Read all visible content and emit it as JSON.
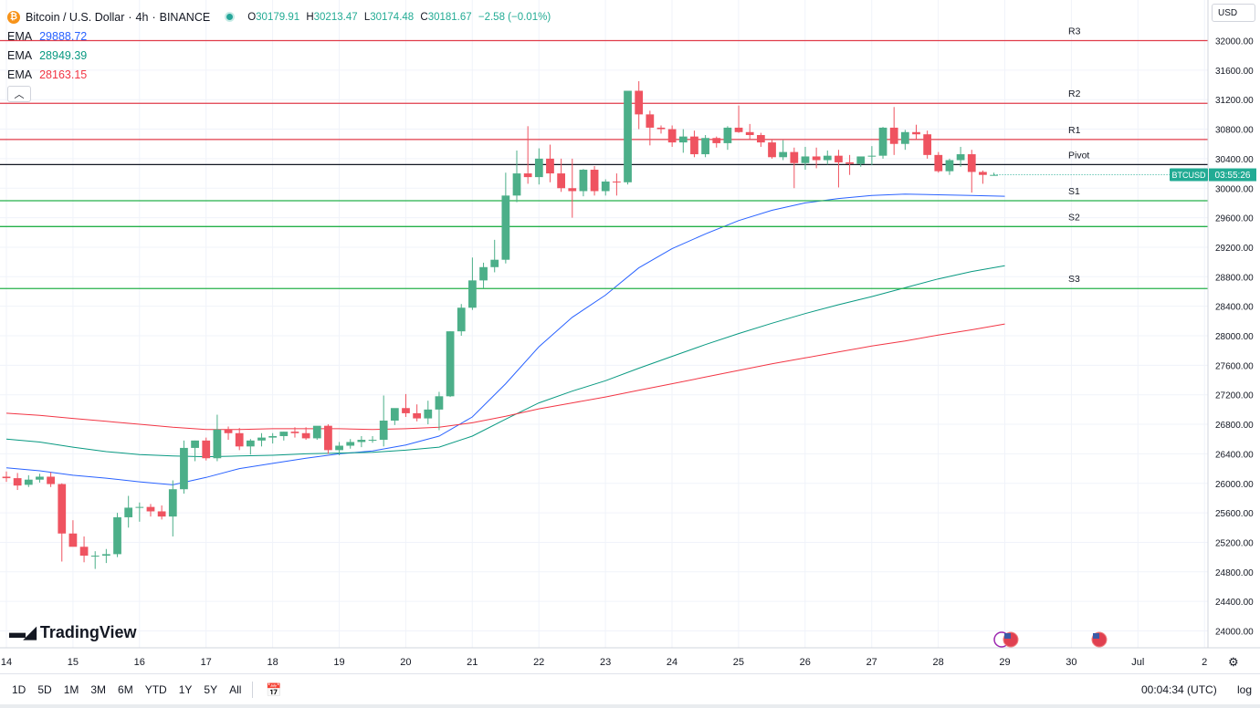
{
  "header": {
    "symbol_title": "Bitcoin / U.S. Dollar",
    "interval": "4h",
    "exchange": "BINANCE",
    "title_separator": "·",
    "ohlc": {
      "o_label": "O",
      "o": "30179.91",
      "h_label": "H",
      "h": "30213.47",
      "l_label": "L",
      "l": "30174.48",
      "c_label": "C",
      "c": "30181.67",
      "change": "−2.58 (−0.01%)"
    }
  },
  "indicators": [
    {
      "label": "EMA",
      "value": "29888.72",
      "color": "#2962ff"
    },
    {
      "label": "EMA",
      "value": "28949.39",
      "color": "#089981"
    },
    {
      "label": "EMA",
      "value": "28163.15",
      "color": "#f23645"
    }
  ],
  "currency": "USD",
  "price_tag": {
    "symbol": "BTCUSD",
    "countdown": "03:55:26",
    "price": 30181.67,
    "color": "#22ab94"
  },
  "brand": "TradingView",
  "bottom_bar": {
    "timeframes": [
      "1D",
      "5D",
      "1M",
      "3M",
      "6M",
      "YTD",
      "1Y",
      "5Y",
      "All"
    ],
    "clock": "00:04:34 (UTC)",
    "log_label": "log"
  },
  "colors": {
    "up": "#4caf89",
    "down": "#ef5360",
    "resistance": "#e03c4a",
    "support": "#25b04a",
    "pivot": "#131722",
    "grid": "#f0f3fa"
  },
  "chart_data": {
    "type": "candlestick",
    "ylim": [
      23750,
      32400
    ],
    "y_ticks": [
      24000,
      24400,
      24800,
      25200,
      25600,
      26000,
      26400,
      26800,
      27200,
      27600,
      28000,
      28400,
      28800,
      29200,
      29600,
      30000,
      30400,
      30800,
      31200,
      31600,
      32000
    ],
    "x_ticks": [
      "14",
      "15",
      "16",
      "17",
      "18",
      "19",
      "20",
      "21",
      "22",
      "23",
      "24",
      "25",
      "26",
      "27",
      "28",
      "29",
      "30",
      "Jul",
      "2"
    ],
    "levels": [
      {
        "name": "R3",
        "value": 32000
      },
      {
        "name": "R2",
        "value": 31150
      },
      {
        "name": "R1",
        "value": 30660
      },
      {
        "name": "Pivot",
        "value": 30320
      },
      {
        "name": "S1",
        "value": 29830
      },
      {
        "name": "S2",
        "value": 29480
      },
      {
        "name": "S3",
        "value": 28640
      }
    ],
    "candles_start_day": 14.0,
    "candle_interval_days": 0.1667,
    "candles": [
      [
        26090,
        26160,
        26020,
        26070
      ],
      [
        26070,
        26140,
        25910,
        25970
      ],
      [
        25980,
        26110,
        25950,
        26050
      ],
      [
        26050,
        26130,
        26010,
        26090
      ],
      [
        26090,
        26150,
        25950,
        25990
      ],
      [
        25990,
        26000,
        24940,
        25320
      ],
      [
        25320,
        25500,
        25160,
        25140
      ],
      [
        25140,
        25280,
        24930,
        25020
      ],
      [
        25020,
        25080,
        24840,
        25020
      ],
      [
        25020,
        25110,
        24920,
        25040
      ],
      [
        25040,
        25600,
        25000,
        25540
      ],
      [
        25540,
        25830,
        25400,
        25670
      ],
      [
        25670,
        25740,
        25480,
        25680
      ],
      [
        25680,
        25720,
        25550,
        25620
      ],
      [
        25620,
        25700,
        25510,
        25550
      ],
      [
        25550,
        26040,
        25280,
        25920
      ],
      [
        25920,
        26580,
        25860,
        26480
      ],
      [
        26480,
        26580,
        26300,
        26580
      ],
      [
        26580,
        26620,
        26310,
        26340
      ],
      [
        26340,
        26930,
        26300,
        26730
      ],
      [
        26730,
        26770,
        26590,
        26680
      ],
      [
        26680,
        26750,
        26450,
        26500
      ],
      [
        26500,
        26600,
        26390,
        26580
      ],
      [
        26580,
        26680,
        26500,
        26620
      ],
      [
        26620,
        26680,
        26540,
        26640
      ],
      [
        26640,
        26700,
        26580,
        26700
      ],
      [
        26700,
        26760,
        26620,
        26680
      ],
      [
        26680,
        26760,
        26590,
        26610
      ],
      [
        26610,
        26740,
        26590,
        26780
      ],
      [
        26780,
        26800,
        26400,
        26450
      ],
      [
        26450,
        26560,
        26380,
        26510
      ],
      [
        26510,
        26600,
        26470,
        26560
      ],
      [
        26560,
        26640,
        26490,
        26590
      ],
      [
        26590,
        26640,
        26550,
        26590
      ],
      [
        26590,
        27190,
        26500,
        26850
      ],
      [
        26850,
        26950,
        26790,
        27020
      ],
      [
        27020,
        27210,
        26900,
        26950
      ],
      [
        26950,
        27070,
        26840,
        26880
      ],
      [
        26880,
        27120,
        26800,
        27000
      ],
      [
        27000,
        27240,
        26720,
        27180
      ],
      [
        27180,
        28060,
        27170,
        28060
      ],
      [
        28060,
        28430,
        28000,
        28380
      ],
      [
        28380,
        29060,
        28350,
        28750
      ],
      [
        28750,
        28990,
        28640,
        28930
      ],
      [
        28930,
        29300,
        28860,
        29030
      ],
      [
        29030,
        30210,
        28980,
        29900
      ],
      [
        29900,
        30510,
        29810,
        30200
      ],
      [
        30200,
        30840,
        30060,
        30150
      ],
      [
        30150,
        30540,
        30050,
        30400
      ],
      [
        30400,
        30590,
        30080,
        30200
      ],
      [
        30200,
        30400,
        29950,
        30000
      ],
      [
        30000,
        30400,
        29600,
        29960
      ],
      [
        29960,
        30260,
        29890,
        30250
      ],
      [
        30250,
        30300,
        29900,
        29960
      ],
      [
        29960,
        30120,
        29900,
        30090
      ],
      [
        30090,
        30200,
        29900,
        30080
      ],
      [
        30080,
        31320,
        30050,
        31320
      ],
      [
        31320,
        31450,
        30800,
        31000
      ],
      [
        31000,
        31050,
        30580,
        30820
      ],
      [
        30820,
        30850,
        30740,
        30800
      ],
      [
        30800,
        30850,
        30560,
        30620
      ],
      [
        30620,
        30800,
        30480,
        30700
      ],
      [
        30700,
        30780,
        30420,
        30460
      ],
      [
        30460,
        30720,
        30420,
        30680
      ],
      [
        30680,
        30700,
        30550,
        30610
      ],
      [
        30610,
        30840,
        30520,
        30820
      ],
      [
        30820,
        31120,
        30750,
        30760
      ],
      [
        30760,
        30870,
        30660,
        30720
      ],
      [
        30720,
        30750,
        30560,
        30620
      ],
      [
        30620,
        30650,
        30400,
        30420
      ],
      [
        30420,
        30650,
        30380,
        30490
      ],
      [
        30490,
        30550,
        30000,
        30340
      ],
      [
        30340,
        30560,
        30250,
        30430
      ],
      [
        30430,
        30550,
        30270,
        30380
      ],
      [
        30380,
        30510,
        30320,
        30440
      ],
      [
        30440,
        30520,
        30010,
        30350
      ],
      [
        30350,
        30450,
        30180,
        30330
      ],
      [
        30330,
        30410,
        30290,
        30430
      ],
      [
        30430,
        30570,
        30310,
        30440
      ],
      [
        30440,
        30830,
        30400,
        30820
      ],
      [
        30820,
        31100,
        30450,
        30600
      ],
      [
        30600,
        30790,
        30520,
        30760
      ],
      [
        30760,
        30860,
        30660,
        30730
      ],
      [
        30730,
        30780,
        30400,
        30450
      ],
      [
        30450,
        30490,
        30210,
        30230
      ],
      [
        30230,
        30400,
        30180,
        30380
      ],
      [
        30380,
        30560,
        30290,
        30460
      ],
      [
        30460,
        30520,
        29940,
        30220
      ],
      [
        30220,
        30240,
        30060,
        30180
      ],
      [
        30180,
        30210,
        30170,
        30180
      ]
    ],
    "series": [
      {
        "name": "EMA",
        "color": "#2962ff",
        "x": [
          14.0,
          14.5,
          15.0,
          15.5,
          16.0,
          16.5,
          17.0,
          17.5,
          18.0,
          18.5,
          19.0,
          19.5,
          20.0,
          20.5,
          21.0,
          21.5,
          22.0,
          22.5,
          23.0,
          23.5,
          24.0,
          24.5,
          25.0,
          25.5,
          26.0,
          26.5,
          27.0,
          27.5,
          28.0,
          28.5,
          29.0
        ],
        "y": [
          26210,
          26170,
          26110,
          26070,
          26020,
          25980,
          26080,
          26200,
          26270,
          26340,
          26400,
          26440,
          26520,
          26640,
          26900,
          27350,
          27850,
          28250,
          28550,
          28920,
          29180,
          29380,
          29560,
          29700,
          29800,
          29860,
          29900,
          29920,
          29910,
          29900,
          29890
        ]
      },
      {
        "name": "EMA",
        "color": "#089981",
        "x": [
          14.0,
          14.5,
          15.0,
          15.5,
          16.0,
          16.5,
          17.0,
          17.5,
          18.0,
          18.5,
          19.0,
          19.5,
          20.0,
          20.5,
          21.0,
          21.5,
          22.0,
          22.5,
          23.0,
          23.5,
          24.0,
          24.5,
          25.0,
          25.5,
          26.0,
          26.5,
          27.0,
          27.5,
          28.0,
          28.5,
          29.0
        ],
        "y": [
          26600,
          26560,
          26490,
          26430,
          26390,
          26370,
          26360,
          26370,
          26380,
          26400,
          26410,
          26420,
          26450,
          26490,
          26640,
          26870,
          27090,
          27250,
          27390,
          27560,
          27720,
          27880,
          28030,
          28170,
          28300,
          28420,
          28530,
          28650,
          28770,
          28870,
          28950
        ]
      },
      {
        "name": "EMA",
        "color": "#f23645",
        "x": [
          14.0,
          14.5,
          15.0,
          15.5,
          16.0,
          16.5,
          17.0,
          17.5,
          18.0,
          18.5,
          19.0,
          19.5,
          20.0,
          20.5,
          21.0,
          21.5,
          22.0,
          22.5,
          23.0,
          23.5,
          24.0,
          24.5,
          25.0,
          25.5,
          26.0,
          26.5,
          27.0,
          27.5,
          28.0,
          28.5,
          29.0
        ],
        "y": [
          26950,
          26920,
          26880,
          26840,
          26800,
          26760,
          26730,
          26730,
          26740,
          26740,
          26740,
          26730,
          26740,
          26760,
          26820,
          26910,
          27010,
          27090,
          27170,
          27260,
          27350,
          27440,
          27530,
          27620,
          27700,
          27780,
          27860,
          27930,
          28010,
          28080,
          28160
        ]
      }
    ]
  }
}
